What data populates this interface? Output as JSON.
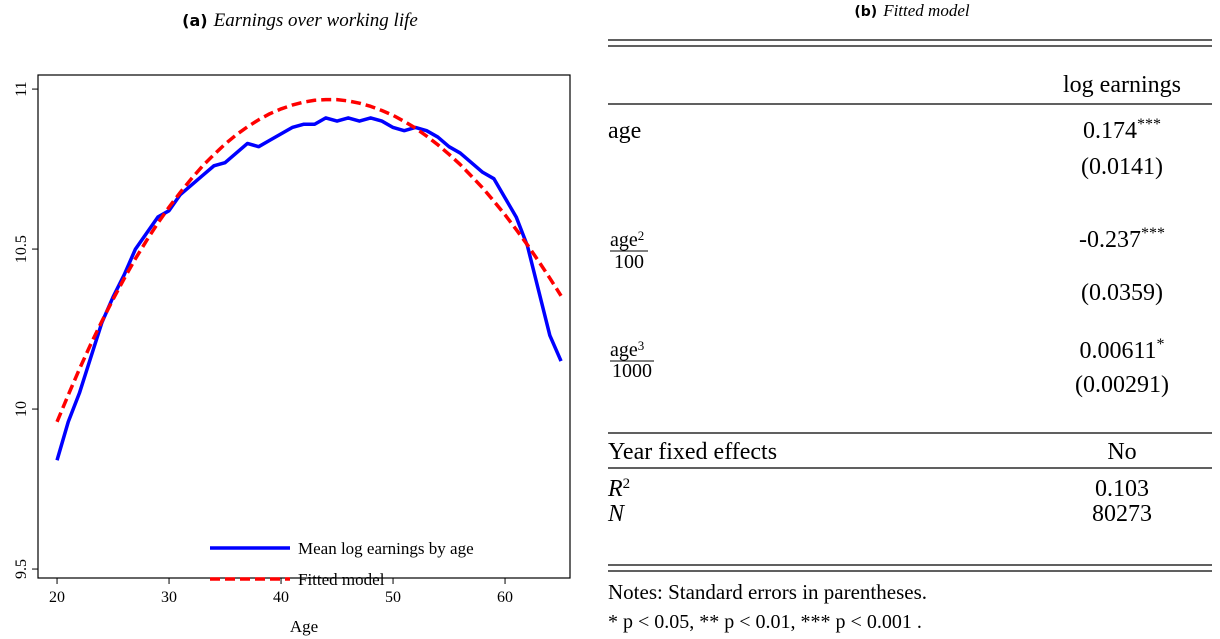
{
  "chart_data": {
    "type": "line",
    "panel_label": "(a)",
    "title": "Earnings over working life",
    "xlabel": "Age",
    "x": [
      20,
      21,
      22,
      23,
      24,
      25,
      26,
      27,
      28,
      29,
      30,
      31,
      32,
      33,
      34,
      35,
      36,
      37,
      38,
      39,
      40,
      41,
      42,
      43,
      44,
      45,
      46,
      47,
      48,
      49,
      50,
      51,
      52,
      53,
      54,
      55,
      56,
      57,
      58,
      59,
      60,
      61,
      62,
      63,
      64,
      65
    ],
    "series": [
      {
        "name": "Mean log earnings by age",
        "color": "#0000ff",
        "dash": false,
        "values": [
          9.84,
          9.96,
          10.05,
          10.16,
          10.27,
          10.35,
          10.42,
          10.5,
          10.55,
          10.6,
          10.62,
          10.67,
          10.7,
          10.73,
          10.76,
          10.77,
          10.8,
          10.83,
          10.82,
          10.84,
          10.86,
          10.88,
          10.89,
          10.89,
          10.91,
          10.9,
          10.91,
          10.9,
          10.91,
          10.9,
          10.88,
          10.87,
          10.88,
          10.87,
          10.85,
          10.82,
          10.8,
          10.77,
          10.74,
          10.72,
          10.66,
          10.6,
          10.51,
          10.37,
          10.23,
          10.15
        ]
      },
      {
        "name": "Fitted model",
        "color": "#ff0000",
        "dash": true,
        "values": [
          9.96,
          10.044,
          10.125,
          10.202,
          10.274,
          10.343,
          10.408,
          10.47,
          10.527,
          10.581,
          10.631,
          10.677,
          10.72,
          10.76,
          10.795,
          10.828,
          10.857,
          10.882,
          10.904,
          10.923,
          10.938,
          10.95,
          10.959,
          10.965,
          10.967,
          10.967,
          10.963,
          10.956,
          10.946,
          10.933,
          10.918,
          10.899,
          10.878,
          10.853,
          10.826,
          10.796,
          10.764,
          10.728,
          10.691,
          10.65,
          10.607,
          10.561,
          10.513,
          10.462,
          10.409,
          10.354
        ]
      }
    ],
    "xlim": [
      18.3,
      65.8
    ],
    "xticks": [
      20,
      30,
      40,
      50,
      60
    ],
    "ylim": [
      9.472,
      11.044
    ],
    "yticks": [
      9.5,
      10,
      10.5,
      11
    ],
    "legend": "lower right"
  },
  "table": {
    "panel_label": "(b)",
    "title": "Fitted model",
    "column_header": "log earnings",
    "rows": [
      {
        "label": "age",
        "coef": "0.174",
        "stars": "***",
        "se": "(0.0141)"
      },
      {
        "label": {
          "numerator": "age",
          "power": "2",
          "denominator": "100"
        },
        "coef": "-0.237",
        "stars": "***",
        "se": "(0.0359)"
      },
      {
        "label": {
          "numerator": "age",
          "power": "3",
          "denominator": "1000"
        },
        "coef": "0.00611",
        "stars": "*",
        "se": "(0.00291)"
      }
    ],
    "fixed_effects": {
      "label": "Year fixed effects",
      "value": "No"
    },
    "stats": [
      {
        "label": "R",
        "power": "2",
        "value": "0.103"
      },
      {
        "label": "N",
        "value": "80273"
      }
    ],
    "notes": [
      "Notes: Standard errors in parentheses.",
      "* p < 0.05, ** p < 0.01, *** p < 0.001 ."
    ]
  }
}
